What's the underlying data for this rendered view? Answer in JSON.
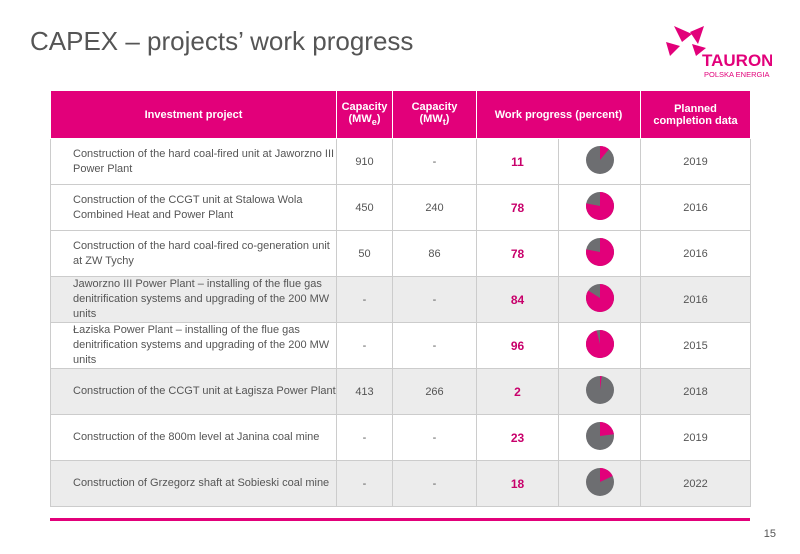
{
  "header": {
    "title": "CAPEX – projects’ work progress",
    "logo": {
      "name": "TAURON",
      "tagline": "POLSKA ENERGIA"
    }
  },
  "table": {
    "columns": {
      "project": "Investment project",
      "capacity_e": {
        "text": "Capacity (MW",
        "sub": "e",
        "close": ")"
      },
      "capacity_t": {
        "text": "Capacity (MW",
        "sub": "t",
        "close": ")"
      },
      "progress": "Work progress (percent)",
      "completion": "Planned completion data"
    },
    "rows": [
      {
        "project": "Construction of the hard coal-fired unit at Jaworzno III Power Plant",
        "capacity_e": 910,
        "capacity_t": "-",
        "progress": 11,
        "completion": 2019
      },
      {
        "project": "Construction of the CCGT unit at Stalowa Wola Combined Heat and Power Plant",
        "capacity_e": 450,
        "capacity_t": 240,
        "progress": 78,
        "completion": 2016
      },
      {
        "project": "Construction of the hard coal-fired co-generation unit at ZW Tychy",
        "capacity_e": 50,
        "capacity_t": 86,
        "progress": 78,
        "completion": 2016
      },
      {
        "project": "Jaworzno III Power Plant – installing of the flue gas denitrification systems and upgrading of the 200 MW units",
        "capacity_e": "-",
        "capacity_t": "-",
        "progress": 84,
        "completion": 2016
      },
      {
        "project": "Łaziska Power Plant – installing of the flue gas denitrification systems and upgrading of the 200 MW units",
        "capacity_e": "-",
        "capacity_t": "-",
        "progress": 96,
        "completion": 2015
      },
      {
        "project": "Construction of the CCGT unit at Łagisza Power Plant",
        "capacity_e": 413,
        "capacity_t": 266,
        "progress": 2,
        "completion": 2018
      },
      {
        "project": "Construction of the 800m level at Janina coal mine",
        "capacity_e": "-",
        "capacity_t": "-",
        "progress": 23,
        "completion": 2019
      },
      {
        "project": "Construction of Grzegorz shaft at Sobieski coal mine",
        "capacity_e": "-",
        "capacity_t": "-",
        "progress": 18,
        "completion": 2022
      }
    ]
  },
  "footer": {
    "page": 15
  }
}
